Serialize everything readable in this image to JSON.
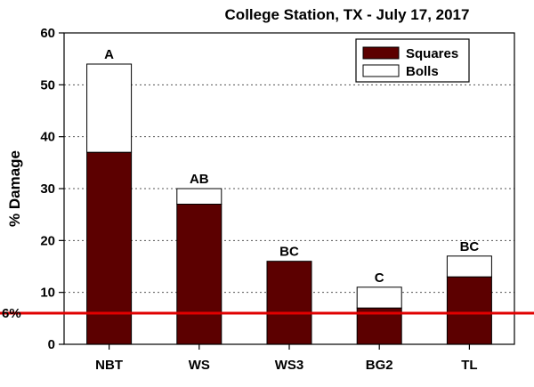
{
  "chart_data": {
    "type": "bar",
    "stacked": true,
    "title": "College Station, TX - July 17, 2017",
    "xlabel": "",
    "ylabel": "% Damage",
    "ylim": [
      0,
      60
    ],
    "yticks": [
      0,
      10,
      20,
      30,
      40,
      50,
      60
    ],
    "grid": true,
    "legend_position": "top-right",
    "categories": [
      "NBT",
      "WS",
      "WS3",
      "BG2",
      "TL"
    ],
    "series": [
      {
        "name": "Squares",
        "values": [
          37,
          27,
          16,
          7,
          13
        ],
        "color": "#5c0000"
      },
      {
        "name": "Bolls",
        "values": [
          17,
          3,
          0,
          4,
          4
        ],
        "color": "#ffffff"
      }
    ],
    "significance_letters": [
      "A",
      "AB",
      "BC",
      "C",
      "BC"
    ],
    "reference_line": {
      "value": 6,
      "label": "6%",
      "color": "#e00000"
    }
  }
}
